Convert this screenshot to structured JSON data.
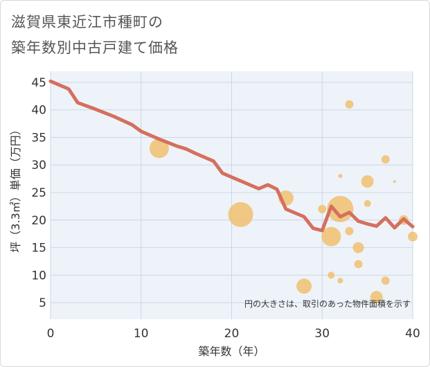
{
  "title_line1": "滋賀県東近江市種町の",
  "title_line2": "築年数別中古戸建て価格",
  "chart_data": {
    "type": "scatter+line",
    "xlabel": "築年数（年）",
    "ylabel": "坪（3.3㎡）単価（万円）",
    "xlim": [
      0,
      40
    ],
    "ylim": [
      2,
      47
    ],
    "xticks": [
      0,
      10,
      20,
      30,
      40
    ],
    "yticks": [
      5,
      10,
      15,
      20,
      25,
      30,
      35,
      40,
      45
    ],
    "note": "円の大きさは、取引のあった物件面積を示す",
    "colors": {
      "line": "#d4705e",
      "bubble": "#f0c070",
      "grid": "#c8d8e8",
      "plot_bg": "#eef3f9"
    },
    "line": {
      "x": [
        0,
        2,
        3,
        5,
        7,
        9,
        10,
        12,
        14,
        15,
        16,
        18,
        19,
        21,
        23,
        24,
        25,
        26,
        28,
        29,
        30,
        31,
        32,
        33,
        34,
        35,
        36,
        37,
        38,
        39,
        40
      ],
      "y": [
        45.2,
        43.8,
        41.3,
        40.1,
        38.8,
        37.3,
        36.1,
        34.7,
        33.4,
        32.9,
        32.1,
        30.7,
        28.5,
        27.1,
        25.7,
        26.4,
        25.6,
        22.0,
        20.6,
        18.5,
        18.1,
        22.5,
        20.6,
        21.4,
        19.8,
        19.3,
        18.9,
        20.4,
        18.6,
        20.2,
        18.8
      ]
    },
    "bubbles": [
      {
        "x": 12,
        "y": 33,
        "size": 14
      },
      {
        "x": 21,
        "y": 21,
        "size": 18
      },
      {
        "x": 26,
        "y": 24,
        "size": 11
      },
      {
        "x": 28,
        "y": 8,
        "size": 11
      },
      {
        "x": 30,
        "y": 22,
        "size": 6
      },
      {
        "x": 31,
        "y": 17,
        "size": 14
      },
      {
        "x": 31,
        "y": 10,
        "size": 5
      },
      {
        "x": 32,
        "y": 22,
        "size": 19
      },
      {
        "x": 32,
        "y": 28,
        "size": 3
      },
      {
        "x": 32,
        "y": 9,
        "size": 4
      },
      {
        "x": 33,
        "y": 41,
        "size": 6
      },
      {
        "x": 33,
        "y": 18,
        "size": 6
      },
      {
        "x": 34,
        "y": 15,
        "size": 8
      },
      {
        "x": 34,
        "y": 12,
        "size": 6
      },
      {
        "x": 35,
        "y": 27,
        "size": 9
      },
      {
        "x": 35,
        "y": 23,
        "size": 5
      },
      {
        "x": 36,
        "y": 6,
        "size": 9
      },
      {
        "x": 37,
        "y": 31,
        "size": 6
      },
      {
        "x": 37,
        "y": 9,
        "size": 6
      },
      {
        "x": 38,
        "y": 27,
        "size": 2
      },
      {
        "x": 39,
        "y": 20,
        "size": 7
      },
      {
        "x": 40,
        "y": 17,
        "size": 7
      }
    ]
  }
}
